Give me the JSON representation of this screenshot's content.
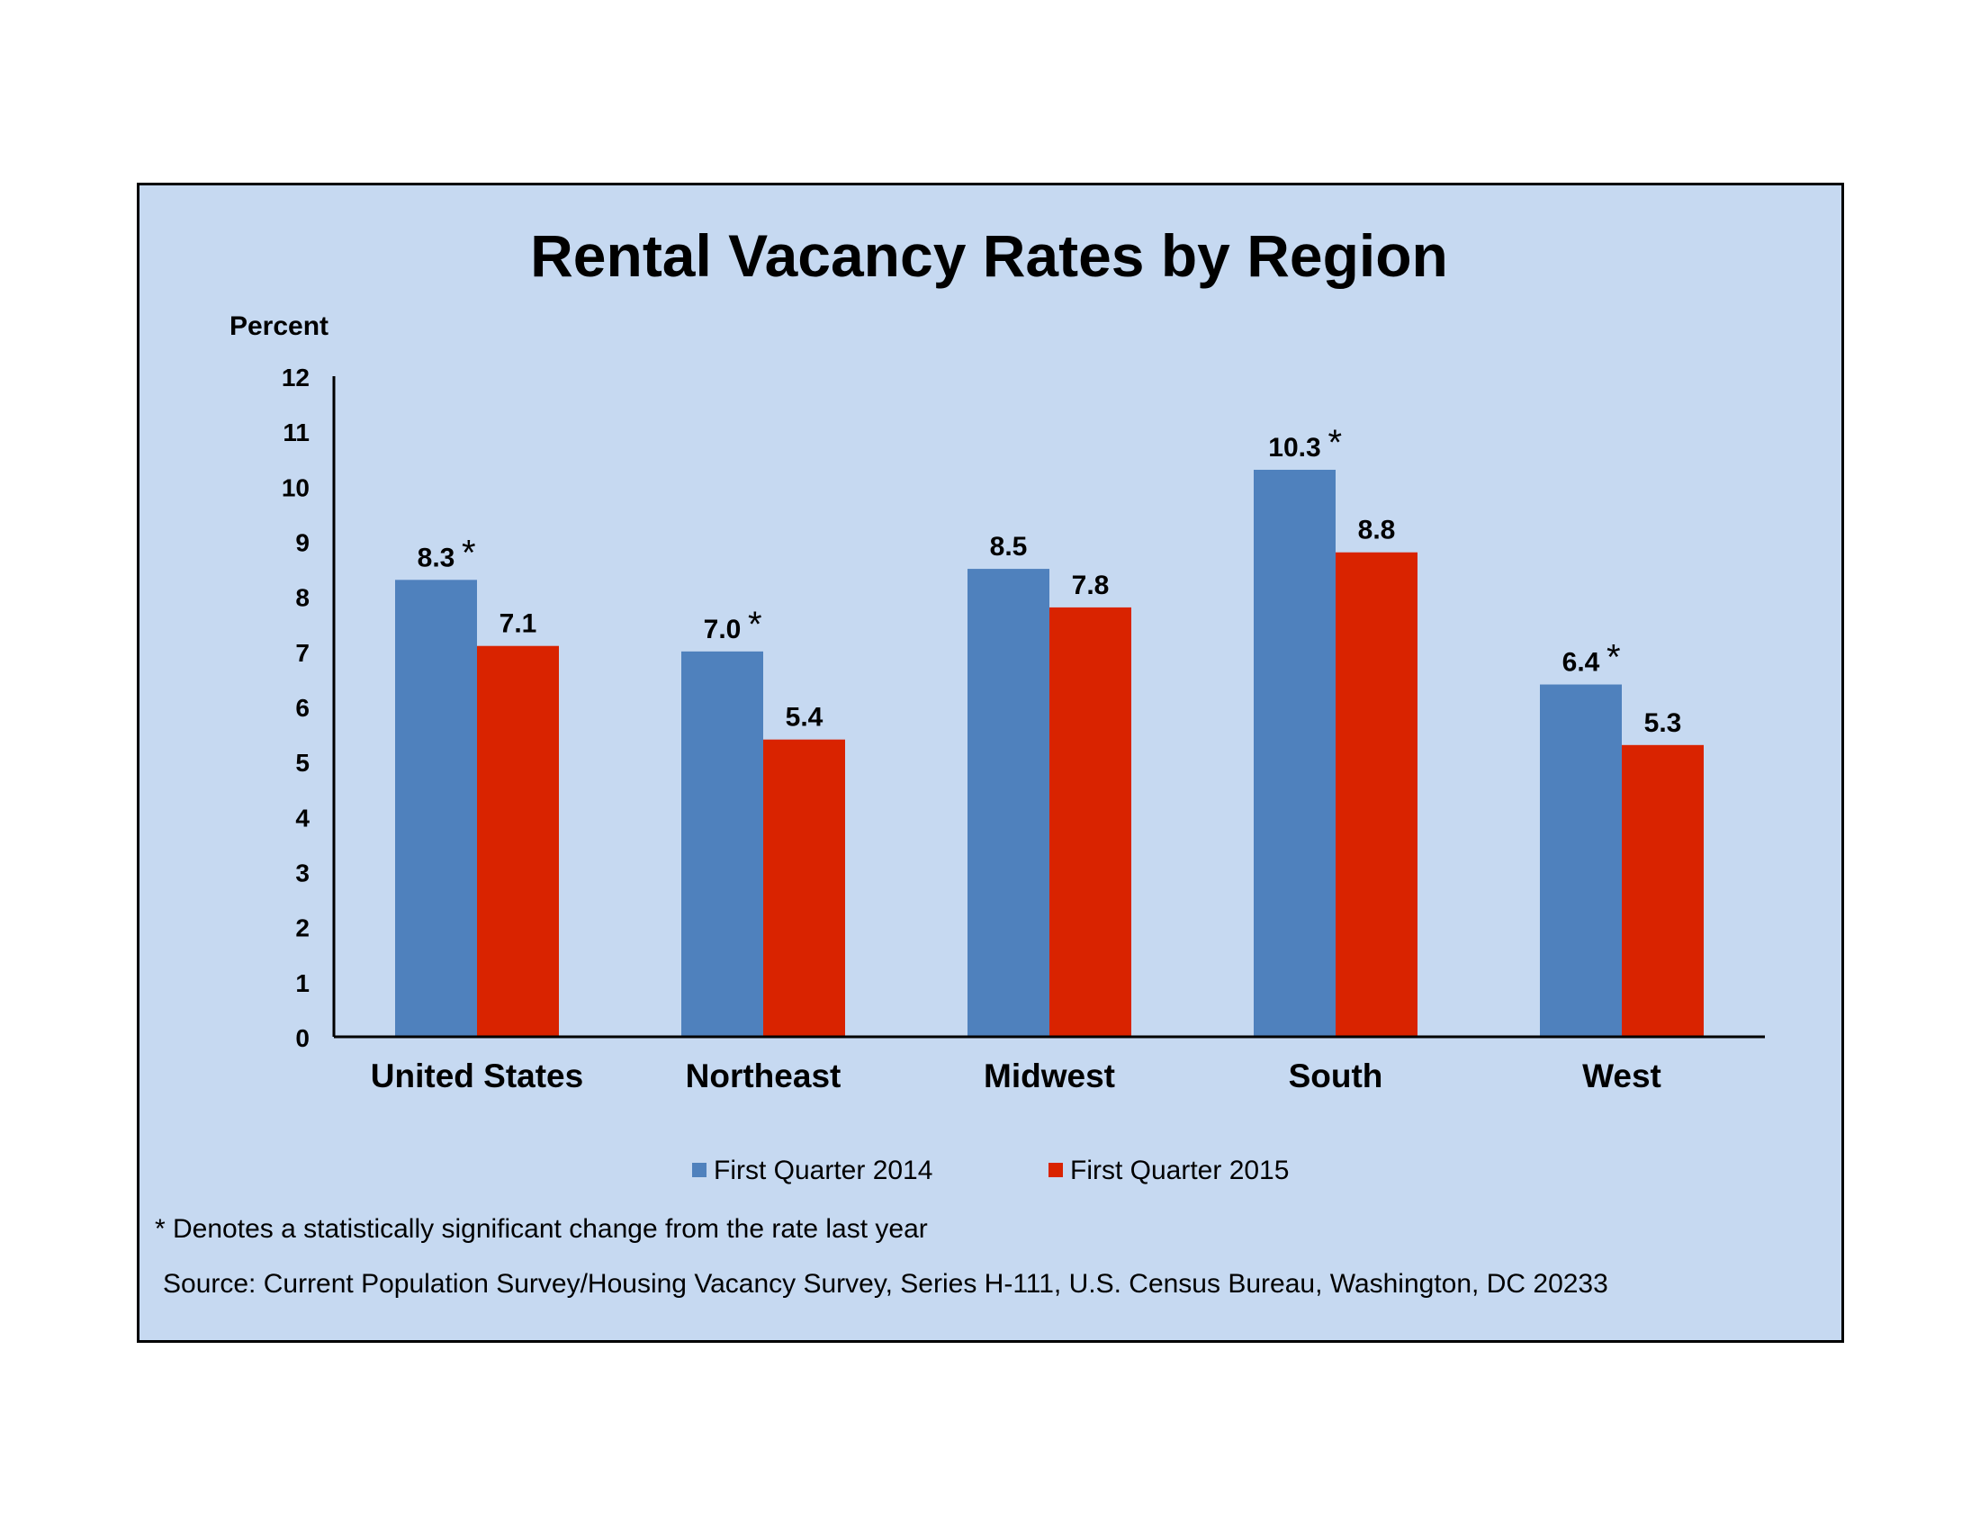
{
  "chart_data": {
    "type": "bar",
    "title": "Rental Vacancy Rates by Region",
    "ylabel": "Percent",
    "xlabel": "",
    "ylim": [
      0,
      12
    ],
    "yticks": [
      "0",
      "1",
      "2",
      "3",
      "4",
      "5",
      "6",
      "7",
      "8",
      "9",
      "10",
      "11",
      "12"
    ],
    "categories": [
      "United States",
      "Northeast",
      "Midwest",
      "South",
      "West"
    ],
    "series": [
      {
        "name": "First Quarter 2014",
        "color": "#4f81bd",
        "values": [
          8.3,
          7.0,
          8.5,
          10.3,
          6.4
        ],
        "labels": [
          "8.3",
          "7.0",
          "8.5",
          "10.3",
          "6.4"
        ],
        "significant": [
          true,
          true,
          false,
          true,
          true
        ]
      },
      {
        "name": "First Quarter 2015",
        "color": "#d92300",
        "values": [
          7.1,
          5.4,
          7.8,
          8.8,
          5.3
        ],
        "labels": [
          "7.1",
          "5.4",
          "7.8",
          "8.8",
          "5.3"
        ],
        "significant": [
          false,
          false,
          false,
          false,
          false
        ]
      }
    ],
    "significance_marker": "*",
    "legend_position": "bottom",
    "grid": false,
    "footnote": "* Denotes a statistically significant change from the rate last year",
    "source": "Source: Current Population Survey/Housing Vacancy Survey, Series H-111, U.S. Census Bureau, Washington, DC 20233",
    "background_color": "#c6d9f1"
  }
}
